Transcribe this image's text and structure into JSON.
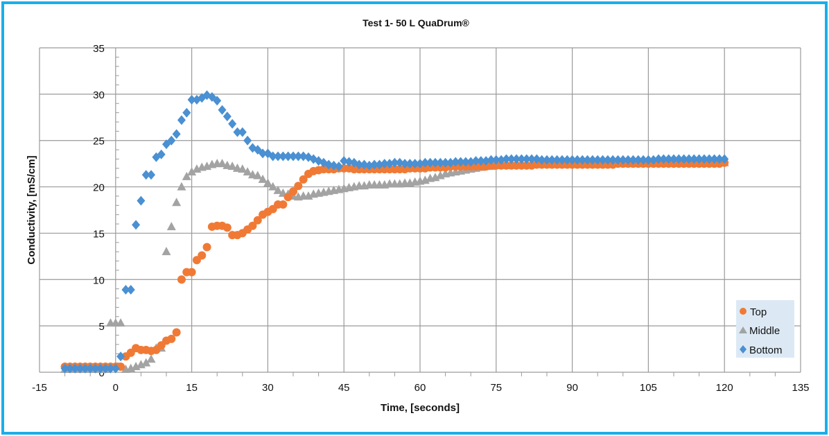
{
  "chart_data": {
    "type": "scatter",
    "title": "Test 1- 50 L QuaDrum®",
    "xlabel": "Time, [seconds]",
    "ylabel": "Conductivity, [mS/cm]",
    "xlim": [
      -15,
      135
    ],
    "ylim": [
      0,
      35
    ],
    "xticks": [
      -15,
      0,
      15,
      30,
      45,
      60,
      75,
      90,
      105,
      120,
      135
    ],
    "yticks": [
      0,
      5,
      10,
      15,
      20,
      25,
      30,
      35
    ],
    "grid": true,
    "legend_position": "bottom-right",
    "x_start": -10,
    "x_step": 1,
    "series": [
      {
        "name": "Top",
        "marker": "circle",
        "color": "#f07a35",
        "values": [
          0.6,
          0.6,
          0.6,
          0.6,
          0.6,
          0.6,
          0.6,
          0.6,
          0.6,
          0.6,
          0.6,
          0.6,
          1.7,
          2.1,
          2.6,
          2.4,
          2.4,
          2.3,
          2.4,
          2.9,
          3.4,
          3.6,
          4.3,
          10.0,
          10.8,
          10.8,
          12.1,
          12.6,
          13.5,
          15.7,
          15.8,
          15.8,
          15.6,
          14.8,
          14.8,
          15.0,
          15.4,
          15.8,
          16.4,
          17.0,
          17.3,
          17.6,
          18.1,
          18.1,
          18.9,
          19.5,
          20.1,
          20.8,
          21.4,
          21.7,
          21.8,
          21.9,
          21.9,
          21.9,
          22.0,
          22.0,
          22.0,
          21.9,
          21.9,
          21.9,
          21.9,
          21.9,
          21.9,
          21.9,
          21.9,
          21.9,
          21.9,
          21.9,
          22.0,
          22.0,
          22.0,
          22.0,
          22.1,
          22.1,
          22.1,
          22.1,
          22.2,
          22.2,
          22.2,
          22.2,
          22.2,
          22.2,
          22.2,
          22.2,
          22.3,
          22.3,
          22.3,
          22.3,
          22.3,
          22.3,
          22.3,
          22.3,
          22.3,
          22.4,
          22.4,
          22.4,
          22.4,
          22.4,
          22.4,
          22.4,
          22.4,
          22.4,
          22.4,
          22.4,
          22.4,
          22.4,
          22.4,
          22.4,
          22.4,
          22.5,
          22.5,
          22.5,
          22.5,
          22.5,
          22.5,
          22.5,
          22.5,
          22.5,
          22.5,
          22.5,
          22.5,
          22.5,
          22.5,
          22.5,
          22.5,
          22.5,
          22.5,
          22.5,
          22.5,
          22.5,
          22.6
        ]
      },
      {
        "name": "Middle",
        "marker": "triangle",
        "color": "#a3a3a3",
        "values": [
          0.3,
          0.3,
          0.3,
          0.3,
          0.3,
          0.3,
          0.3,
          0.3,
          0.3,
          5.3,
          5.3,
          5.3,
          0.3,
          0.4,
          0.6,
          0.8,
          1.0,
          1.4,
          2.6,
          2.6,
          13.0,
          15.7,
          18.3,
          20.0,
          21.1,
          21.6,
          21.9,
          22.1,
          22.2,
          22.4,
          22.5,
          22.5,
          22.3,
          22.2,
          22.0,
          21.9,
          21.6,
          21.3,
          21.2,
          20.8,
          20.4,
          20.0,
          19.6,
          19.3,
          19.2,
          19.0,
          18.9,
          19.0,
          19.0,
          19.2,
          19.3,
          19.4,
          19.5,
          19.6,
          19.7,
          19.8,
          19.9,
          20.0,
          20.1,
          20.1,
          20.2,
          20.2,
          20.2,
          20.2,
          20.3,
          20.3,
          20.3,
          20.4,
          20.4,
          20.5,
          20.6,
          20.7,
          20.9,
          21.0,
          21.2,
          21.4,
          21.5,
          21.6,
          21.7,
          21.8,
          21.9,
          22.0,
          22.1,
          22.2,
          22.2,
          22.3,
          22.3,
          22.3,
          22.3,
          22.4,
          22.4,
          22.4,
          22.4,
          22.4,
          22.4,
          22.4,
          22.4,
          22.4,
          22.4,
          22.4,
          22.4,
          22.5,
          22.5,
          22.5,
          22.5,
          22.5,
          22.5,
          22.5,
          22.5,
          22.5,
          22.5,
          22.5,
          22.5,
          22.5,
          22.5,
          22.6,
          22.6,
          22.6,
          22.6,
          22.6,
          22.6,
          22.6,
          22.6,
          22.6,
          22.6,
          22.6,
          22.6,
          22.6,
          22.6,
          22.6,
          22.6
        ]
      },
      {
        "name": "Bottom",
        "marker": "diamond",
        "color": "#4a90d2",
        "values": [
          0.4,
          0.4,
          0.4,
          0.4,
          0.4,
          0.4,
          0.4,
          0.4,
          0.4,
          0.4,
          0.4,
          1.7,
          8.9,
          8.9,
          15.9,
          18.5,
          21.3,
          21.3,
          23.2,
          23.5,
          24.6,
          25.0,
          25.7,
          27.2,
          28.0,
          29.4,
          29.4,
          29.6,
          29.9,
          29.7,
          29.3,
          28.3,
          27.6,
          26.8,
          25.9,
          25.9,
          25.0,
          24.2,
          24.0,
          23.6,
          23.6,
          23.3,
          23.3,
          23.3,
          23.3,
          23.3,
          23.3,
          23.3,
          23.2,
          23.0,
          22.8,
          22.6,
          22.4,
          22.3,
          22.2,
          22.8,
          22.7,
          22.6,
          22.4,
          22.4,
          22.3,
          22.4,
          22.4,
          22.5,
          22.5,
          22.6,
          22.6,
          22.5,
          22.5,
          22.5,
          22.5,
          22.6,
          22.6,
          22.6,
          22.6,
          22.6,
          22.6,
          22.7,
          22.7,
          22.7,
          22.7,
          22.8,
          22.8,
          22.8,
          22.9,
          22.9,
          22.9,
          23.0,
          23.0,
          23.0,
          23.0,
          23.0,
          23.0,
          23.0,
          22.9,
          22.9,
          22.9,
          22.9,
          22.9,
          22.9,
          22.9,
          22.9,
          22.9,
          22.9,
          22.9,
          22.9,
          22.9,
          22.9,
          22.9,
          22.9,
          22.9,
          22.9,
          22.9,
          22.9,
          22.9,
          22.9,
          22.9,
          23.0,
          23.0,
          23.0,
          23.0,
          23.0,
          23.0,
          23.0,
          23.0,
          23.0,
          23.0,
          23.0,
          23.0,
          23.0,
          23.0
        ]
      }
    ]
  }
}
